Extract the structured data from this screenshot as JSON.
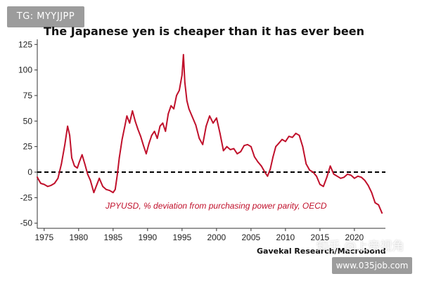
{
  "header_badge": "TG: MYYJJPP",
  "footer_badge": "www.035job.com",
  "watermark": "知乎 @上帝视角",
  "chart_data": {
    "type": "line",
    "title": "The Japanese yen is cheaper than it has ever been",
    "annotation": "JPYUSD, % deviation from purchasing power parity, OECD",
    "source": "Gavekal Research/Macrobond",
    "xlabel": "",
    "ylabel": "",
    "xlim": [
      1974,
      2024.5
    ],
    "ylim": [
      -55,
      130
    ],
    "x_ticks": [
      1975,
      1980,
      1985,
      1990,
      1995,
      2000,
      2005,
      2010,
      2015,
      2020
    ],
    "y_ticks": [
      125,
      100,
      75,
      50,
      25,
      0,
      -25,
      -50
    ],
    "reference_line": {
      "y": 0,
      "style": "dashed"
    },
    "colors": {
      "series": "#c0102b",
      "axis": "#333333",
      "reference": "#000000"
    },
    "series": [
      {
        "x": [
          1974.0,
          1974.5,
          1975.0,
          1975.5,
          1976.0,
          1976.5,
          1977.0,
          1977.5,
          1978.0,
          1978.4,
          1978.7,
          1979.0,
          1979.4,
          1979.8,
          1980.1,
          1980.5,
          1980.9,
          1981.3,
          1981.7,
          1982.2,
          1982.6,
          1983.0,
          1983.5,
          1984.0,
          1984.5,
          1985.0,
          1985.3,
          1985.6,
          1985.9,
          1986.3,
          1986.7,
          1987.0,
          1987.4,
          1987.8,
          1988.2,
          1988.6,
          1989.0,
          1989.4,
          1989.8,
          1990.2,
          1990.6,
          1991.0,
          1991.4,
          1991.8,
          1992.2,
          1992.6,
          1993.0,
          1993.4,
          1993.8,
          1994.2,
          1994.6,
          1995.0,
          1995.2,
          1995.4,
          1995.7,
          1996.0,
          1996.5,
          1997.0,
          1997.5,
          1998.0,
          1998.5,
          1999.0,
          1999.5,
          2000.0,
          2000.5,
          2001.0,
          2001.5,
          2002.0,
          2002.5,
          2003.0,
          2003.5,
          2004.0,
          2004.5,
          2005.0,
          2005.5,
          2006.0,
          2006.5,
          2007.0,
          2007.4,
          2007.8,
          2008.2,
          2008.6,
          2009.0,
          2009.5,
          2010.0,
          2010.5,
          2011.0,
          2011.5,
          2012.0,
          2012.5,
          2013.0,
          2013.5,
          2014.0,
          2014.5,
          2015.0,
          2015.5,
          2016.0,
          2016.5,
          2017.0,
          2017.5,
          2018.0,
          2018.5,
          2019.0,
          2019.5,
          2020.0,
          2020.5,
          2021.0,
          2021.5,
          2022.0,
          2022.5,
          2023.0,
          2023.5,
          2024.0
        ],
        "values": [
          -5,
          -11,
          -12,
          -14,
          -13,
          -11,
          -6,
          8,
          27,
          45,
          36,
          14,
          6,
          4,
          10,
          17,
          8,
          -2,
          -8,
          -20,
          -13,
          -6,
          -14,
          -17,
          -18,
          -20,
          -17,
          -3,
          14,
          32,
          45,
          55,
          48,
          60,
          50,
          42,
          35,
          26,
          18,
          28,
          36,
          40,
          33,
          45,
          48,
          40,
          57,
          65,
          62,
          75,
          80,
          95,
          115,
          88,
          70,
          62,
          54,
          46,
          33,
          27,
          45,
          55,
          48,
          53,
          38,
          21,
          25,
          22,
          23,
          18,
          20,
          26,
          27,
          25,
          15,
          10,
          6,
          0,
          -4,
          3,
          15,
          25,
          28,
          32,
          30,
          35,
          34,
          38,
          36,
          25,
          8,
          2,
          0,
          -4,
          -12,
          -14,
          -5,
          6,
          -2,
          -4,
          -6,
          -5,
          -2,
          -3,
          -6,
          -4,
          -5,
          -8,
          -13,
          -20,
          -30,
          -32,
          -40
        ]
      }
    ]
  }
}
